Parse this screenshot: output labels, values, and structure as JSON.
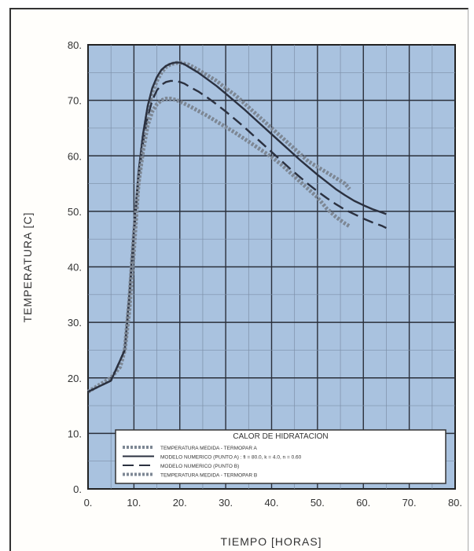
{
  "chart_data": {
    "type": "line",
    "xlabel": "TIEMPO [HORAS]",
    "ylabel": "TEMPERATURA [C]",
    "xlim": [
      0,
      80
    ],
    "ylim": [
      0,
      80
    ],
    "x_ticks": [
      "0.",
      "10.",
      "20.",
      "30.",
      "40.",
      "50.",
      "60.",
      "70.",
      "80."
    ],
    "y_ticks": [
      "0.",
      "10.",
      "20.",
      "30.",
      "40.",
      "50.",
      "60.",
      "70.",
      "80."
    ],
    "grid": true,
    "legend": {
      "title": "CALOR DE HIDRATACION",
      "placement": "bottom-right"
    },
    "series": [
      {
        "name": "TEMPERATURA MEDIDA - TERMOPAR A",
        "style": "dotted-thick",
        "color": "#7d8794",
        "x": [
          0,
          1,
          2,
          3,
          4,
          5,
          6,
          7,
          8,
          9,
          10,
          11,
          12,
          13,
          14,
          15,
          16,
          17,
          18,
          19,
          20,
          21,
          22,
          24,
          26,
          28,
          30,
          32,
          34,
          36,
          38,
          40,
          42,
          44,
          46,
          48,
          50,
          52,
          54,
          56,
          57
        ],
        "y": [
          17.5,
          18,
          18.5,
          19,
          19.5,
          20,
          21,
          22,
          25,
          32,
          43,
          55,
          63,
          68,
          71.5,
          73.5,
          75,
          76,
          76.5,
          76.7,
          76.8,
          76.6,
          76.4,
          75.5,
          74.5,
          73.5,
          72.2,
          71,
          69.5,
          68,
          66.5,
          65,
          63.5,
          62,
          60.5,
          59,
          58,
          57,
          56,
          55,
          54
        ]
      },
      {
        "name": "MODELO NUMERICO (PUNTO A) : fi = 80.0, k = 4.0, n = 0.60",
        "style": "solid",
        "color": "#2b3140",
        "x": [
          0,
          5,
          8,
          9,
          10,
          11,
          12,
          13,
          14,
          15,
          16,
          17,
          18,
          19,
          20,
          21,
          22,
          24,
          26,
          28,
          30,
          32,
          34,
          36,
          38,
          40,
          42,
          44,
          46,
          48,
          50,
          52,
          54,
          56,
          58,
          60,
          62,
          64,
          65
        ],
        "y": [
          17.5,
          19.5,
          25,
          35,
          47,
          57,
          64,
          69,
          72.2,
          74.2,
          75.5,
          76.2,
          76.6,
          76.8,
          76.8,
          76.5,
          76,
          75,
          73.8,
          72.6,
          71.2,
          69.8,
          68.4,
          66.9,
          65.4,
          63.9,
          62.4,
          60.9,
          59.4,
          58,
          56.6,
          55.3,
          54,
          52.9,
          51.9,
          51.1,
          50.4,
          49.8,
          49.5
        ]
      },
      {
        "name": "MODELO NUMERICO (PUNTO B)",
        "style": "dashed",
        "color": "#2b3140",
        "x": [
          0,
          5,
          8,
          9,
          10,
          11,
          12,
          13,
          14,
          15,
          16,
          17,
          18,
          19,
          20,
          21,
          22,
          24,
          26,
          28,
          30,
          32,
          34,
          36,
          38,
          40,
          42,
          44,
          46,
          48,
          50,
          52,
          54,
          56,
          58,
          60,
          62,
          64,
          65
        ],
        "y": [
          17.5,
          19.5,
          25,
          34,
          46,
          56,
          62.5,
          67,
          70,
          71.8,
          72.8,
          73.3,
          73.5,
          73.5,
          73.3,
          73,
          72.5,
          71.6,
          70.5,
          69.3,
          68,
          66.6,
          65.2,
          63.7,
          62.2,
          60.7,
          59.2,
          57.7,
          56.3,
          54.9,
          53.6,
          52.4,
          51.3,
          50.3,
          49.5,
          48.7,
          48,
          47.4,
          47
        ]
      },
      {
        "name": "TEMPERATURA MEDIDA - TERMOPAR B",
        "style": "dotted-thick",
        "color": "#7d8794",
        "x": [
          8,
          9,
          10,
          11,
          12,
          13,
          14,
          15,
          16,
          17,
          18,
          19,
          20,
          22,
          24,
          26,
          28,
          30,
          32,
          34,
          36,
          38,
          40,
          42,
          44,
          46,
          48,
          50,
          52,
          54,
          56,
          57
        ],
        "y": [
          25,
          34,
          46,
          55,
          61,
          65.5,
          68,
          69.3,
          70,
          70.3,
          70.3,
          70.1,
          69.8,
          69,
          68.1,
          67.2,
          66.2,
          65.2,
          64.2,
          63.1,
          62,
          60.9,
          59.8,
          58.5,
          57,
          55.5,
          54,
          52.5,
          50.5,
          49,
          47.8,
          47.3
        ]
      }
    ]
  }
}
